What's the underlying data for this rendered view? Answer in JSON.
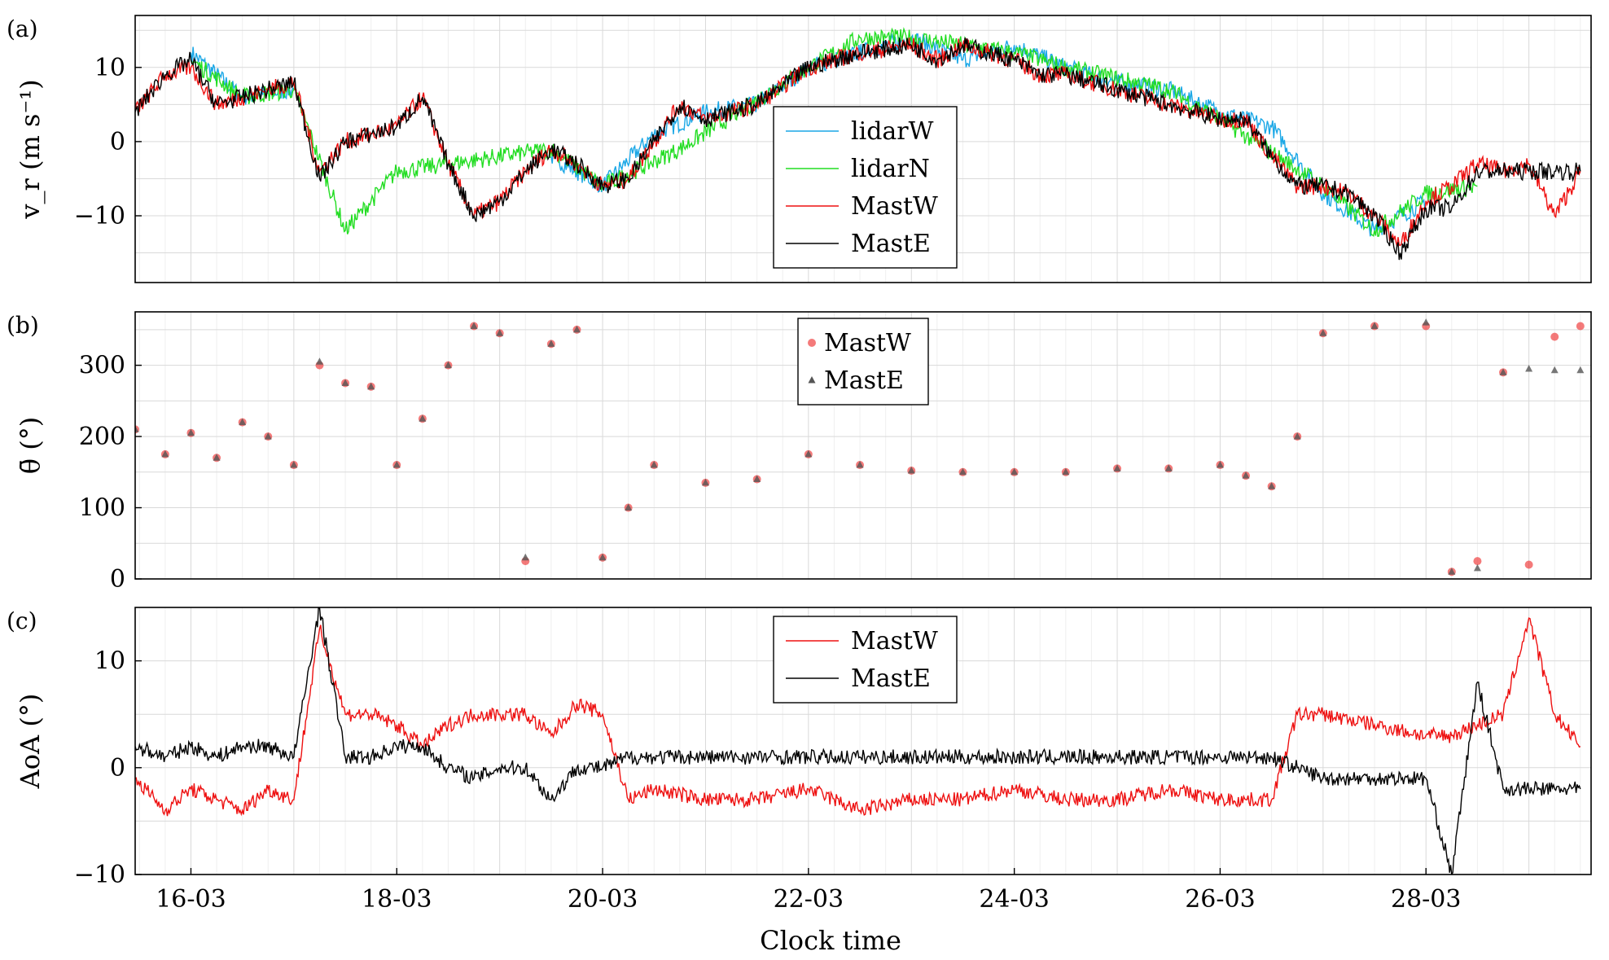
{
  "chart_data": [
    {
      "panel": "(a)",
      "type": "line",
      "ylabel": "v_r (m s⁻¹)",
      "ylim": [
        -19,
        17
      ],
      "yticks": [
        -10,
        0,
        10
      ],
      "yticklabels": [
        "−10",
        "0",
        "10"
      ],
      "xlim": [
        "2023-03-15T11:00",
        "2023-03-29T14:30"
      ],
      "grid": true,
      "legend": "center",
      "series": [
        {
          "name": "lidarW",
          "color": "#1aa7e6",
          "x": [
            "03-15 12:00",
            "03-16 00:00",
            "03-16 12:00",
            "03-17 00:00",
            "03-17 12:00",
            "03-18 00:00",
            "03-18 12:00",
            "03-19 00:00",
            "03-19 12:00",
            "03-20 00:00",
            "03-20 12:00",
            "03-21 00:00",
            "03-21 12:00",
            "03-22 00:00",
            "03-22 12:00",
            "03-23 00:00",
            "03-23 12:00",
            "03-24 00:00",
            "03-24 12:00",
            "03-25 00:00",
            "03-25 12:00",
            "03-26 00:00",
            "03-26 12:00",
            "03-27 00:00",
            "03-27 12:00",
            "03-28 00:00"
          ],
          "values": [
            null,
            12,
            6,
            7,
            null,
            null,
            null,
            null,
            -2,
            -6,
            1,
            4,
            5,
            10,
            12,
            14,
            11,
            13,
            10,
            8,
            7,
            4,
            2,
            -7,
            -12,
            -8
          ]
        },
        {
          "name": "lidarN",
          "color": "#22dd22",
          "x": [
            "03-16 00:00",
            "03-16 12:00",
            "03-17 00:00",
            "03-17 12:00",
            "03-17 18:00",
            "03-18 00:00",
            "03-19 12:00",
            "03-20 00:00",
            "03-20 18:00",
            "03-22 00:00",
            "03-22 12:00",
            "03-23 00:00",
            "03-23 12:00",
            "03-24 00:00",
            "03-24 12:00",
            "03-25 12:00",
            "03-26 00:00",
            "03-27 00:00",
            "03-27 12:00",
            "03-28 00:00",
            "03-28 12:00"
          ],
          "values": [
            11,
            6,
            7,
            -12,
            -8,
            -4,
            -1,
            -6,
            -1,
            10,
            14,
            14,
            13,
            12,
            10,
            7,
            3,
            -6,
            -12,
            -7,
            -6
          ]
        },
        {
          "name": "MastW",
          "color": "#ee1111",
          "x": [
            "03-15 11:00",
            "03-15 18:00",
            "03-16 00:00",
            "03-16 06:00",
            "03-16 12:00",
            "03-16 18:00",
            "03-17 00:00",
            "03-17 06:00",
            "03-17 12:00",
            "03-17 18:00",
            "03-18 00:00",
            "03-18 06:00",
            "03-18 12:00",
            "03-18 18:00",
            "03-19 00:00",
            "03-19 06:00",
            "03-19 12:00",
            "03-19 18:00",
            "03-20 00:00",
            "03-20 06:00",
            "03-20 12:00",
            "03-20 18:00",
            "03-21 00:00",
            "03-21 12:00",
            "03-22 00:00",
            "03-22 12:00",
            "03-23 00:00",
            "03-23 06:00",
            "03-23 12:00",
            "03-23 18:00",
            "03-24 00:00",
            "03-24 06:00",
            "03-24 12:00",
            "03-25 00:00",
            "03-25 12:00",
            "03-26 00:00",
            "03-26 06:00",
            "03-26 12:00",
            "03-26 18:00",
            "03-27 00:00",
            "03-27 06:00",
            "03-27 12:00",
            "03-27 18:00",
            "03-28 00:00",
            "03-28 06:00",
            "03-28 12:00",
            "03-28 18:00",
            "03-29 00:00",
            "03-29 06:00",
            "03-29 12:00"
          ],
          "values": [
            4,
            9,
            10,
            5,
            6,
            7,
            8,
            -4,
            0,
            1,
            2,
            6,
            -3,
            -10,
            -8,
            -4,
            -1,
            -3,
            -6,
            -5,
            0,
            5,
            3,
            5,
            10,
            12,
            13,
            11,
            13,
            12,
            11,
            9,
            9,
            7,
            5,
            3,
            3,
            -2,
            -6,
            -6,
            -7,
            -10,
            -14,
            -8,
            -6,
            -3,
            -4,
            -3,
            -10,
            -4
          ]
        },
        {
          "name": "MastE",
          "color": "#000000",
          "x": [
            "03-15 11:00",
            "03-15 18:00",
            "03-16 00:00",
            "03-16 06:00",
            "03-16 12:00",
            "03-16 18:00",
            "03-17 00:00",
            "03-17 06:00",
            "03-17 12:00",
            "03-17 18:00",
            "03-18 00:00",
            "03-18 06:00",
            "03-18 12:00",
            "03-18 18:00",
            "03-19 00:00",
            "03-19 06:00",
            "03-19 12:00",
            "03-19 18:00",
            "03-20 00:00",
            "03-20 06:00",
            "03-20 12:00",
            "03-20 18:00",
            "03-21 00:00",
            "03-21 12:00",
            "03-22 00:00",
            "03-22 12:00",
            "03-23 00:00",
            "03-23 06:00",
            "03-23 12:00",
            "03-23 18:00",
            "03-24 00:00",
            "03-24 06:00",
            "03-24 12:00",
            "03-25 00:00",
            "03-25 12:00",
            "03-26 00:00",
            "03-26 06:00",
            "03-26 12:00",
            "03-26 18:00",
            "03-27 00:00",
            "03-27 06:00",
            "03-27 12:00",
            "03-27 18:00",
            "03-28 00:00",
            "03-28 06:00",
            "03-28 12:00",
            "03-28 18:00",
            "03-29 00:00",
            "03-29 06:00",
            "03-29 12:00"
          ],
          "values": [
            4,
            9,
            11,
            5,
            6,
            7,
            8,
            -5,
            0,
            1,
            2,
            6,
            -3,
            -10,
            -8,
            -4,
            -1,
            -3,
            -6,
            -5,
            0,
            5,
            3,
            5,
            10,
            12,
            13,
            11,
            13,
            12,
            11,
            9,
            9,
            7,
            5,
            3,
            3,
            -2,
            -6,
            -6,
            -7,
            -10,
            -15,
            -9,
            -9,
            -4,
            -4,
            -4,
            -4,
            -4
          ]
        }
      ]
    },
    {
      "panel": "(b)",
      "type": "scatter",
      "ylabel": "θ̄ (°)",
      "ylim": [
        0,
        375
      ],
      "yticks": [
        0,
        100,
        200,
        300
      ],
      "yticklabels": [
        "0",
        "100",
        "200",
        "300"
      ],
      "xlim": [
        "2023-03-15T11:00",
        "2023-03-29T14:30"
      ],
      "grid": true,
      "legend": "top-center",
      "series": [
        {
          "name": "MastW",
          "marker": "circle",
          "color": "#ee3333",
          "x": [
            "03-15 11:00",
            "03-15 18:00",
            "03-16 00:00",
            "03-16 06:00",
            "03-16 12:00",
            "03-16 18:00",
            "03-17 00:00",
            "03-17 06:00",
            "03-17 12:00",
            "03-17 18:00",
            "03-18 00:00",
            "03-18 06:00",
            "03-18 12:00",
            "03-18 18:00",
            "03-19 00:00",
            "03-19 06:00",
            "03-19 12:00",
            "03-19 18:00",
            "03-20 00:00",
            "03-20 06:00",
            "03-20 12:00",
            "03-21 00:00",
            "03-21 12:00",
            "03-22 00:00",
            "03-22 12:00",
            "03-23 00:00",
            "03-23 12:00",
            "03-24 00:00",
            "03-24 12:00",
            "03-25 00:00",
            "03-25 12:00",
            "03-26 00:00",
            "03-26 06:00",
            "03-26 12:00",
            "03-26 18:00",
            "03-27 00:00",
            "03-27 12:00",
            "03-28 00:00",
            "03-28 06:00",
            "03-28 12:00",
            "03-28 18:00",
            "03-29 00:00",
            "03-29 06:00",
            "03-29 12:00"
          ],
          "values": [
            210,
            175,
            205,
            170,
            220,
            200,
            160,
            300,
            275,
            270,
            160,
            225,
            300,
            355,
            345,
            25,
            330,
            350,
            30,
            100,
            160,
            135,
            140,
            175,
            160,
            152,
            150,
            150,
            150,
            155,
            155,
            160,
            145,
            130,
            200,
            345,
            355,
            355,
            10,
            25,
            290,
            20,
            340,
            355
          ]
        },
        {
          "name": "MastE",
          "marker": "triangle",
          "color": "#555555",
          "x": [
            "03-15 11:00",
            "03-15 18:00",
            "03-16 00:00",
            "03-16 06:00",
            "03-16 12:00",
            "03-16 18:00",
            "03-17 00:00",
            "03-17 06:00",
            "03-17 12:00",
            "03-17 18:00",
            "03-18 00:00",
            "03-18 06:00",
            "03-18 12:00",
            "03-18 18:00",
            "03-19 00:00",
            "03-19 06:00",
            "03-19 12:00",
            "03-19 18:00",
            "03-20 00:00",
            "03-20 06:00",
            "03-20 12:00",
            "03-21 00:00",
            "03-21 12:00",
            "03-22 00:00",
            "03-22 12:00",
            "03-23 00:00",
            "03-23 12:00",
            "03-24 00:00",
            "03-24 12:00",
            "03-25 00:00",
            "03-25 12:00",
            "03-26 00:00",
            "03-26 06:00",
            "03-26 12:00",
            "03-26 18:00",
            "03-27 00:00",
            "03-27 12:00",
            "03-28 00:00",
            "03-28 06:00",
            "03-28 12:00",
            "03-28 18:00",
            "03-29 00:00",
            "03-29 06:00",
            "03-29 12:00"
          ],
          "values": [
            210,
            175,
            205,
            170,
            220,
            200,
            160,
            305,
            275,
            270,
            160,
            225,
            300,
            355,
            345,
            30,
            330,
            350,
            30,
            100,
            160,
            135,
            140,
            175,
            160,
            152,
            150,
            150,
            150,
            155,
            155,
            160,
            145,
            130,
            200,
            345,
            355,
            360,
            10,
            15,
            290,
            295,
            293,
            293
          ]
        }
      ]
    },
    {
      "panel": "(c)",
      "type": "line",
      "ylabel": "AoA (°)",
      "xlabel": "Clock time",
      "ylim": [
        -10,
        15
      ],
      "yticks": [
        -10,
        0,
        10
      ],
      "yticklabels": [
        "−10",
        "0",
        "10"
      ],
      "xticklabels": [
        "16-03",
        "18-03",
        "20-03",
        "22-03",
        "24-03",
        "26-03",
        "28-03"
      ],
      "xticks": [
        "03-16 00:00",
        "03-18 00:00",
        "03-20 00:00",
        "03-22 00:00",
        "03-24 00:00",
        "03-26 00:00",
        "03-28 00:00"
      ],
      "xlim": [
        "2023-03-15T11:00",
        "2023-03-29T14:30"
      ],
      "grid": true,
      "legend": "top-center",
      "series": [
        {
          "name": "MastW",
          "color": "#ee1111",
          "x": [
            "03-15 11:00",
            "03-15 18:00",
            "03-16 00:00",
            "03-16 06:00",
            "03-16 12:00",
            "03-16 18:00",
            "03-17 00:00",
            "03-17 06:00",
            "03-17 12:00",
            "03-17 18:00",
            "03-18 00:00",
            "03-18 06:00",
            "03-18 12:00",
            "03-18 18:00",
            "03-19 00:00",
            "03-19 06:00",
            "03-19 12:00",
            "03-19 18:00",
            "03-20 00:00",
            "03-20 06:00",
            "03-20 12:00",
            "03-21 00:00",
            "03-21 12:00",
            "03-22 00:00",
            "03-22 12:00",
            "03-23 00:00",
            "03-23 12:00",
            "03-24 00:00",
            "03-24 12:00",
            "03-25 00:00",
            "03-25 12:00",
            "03-26 00:00",
            "03-26 06:00",
            "03-26 12:00",
            "03-26 18:00",
            "03-27 00:00",
            "03-27 12:00",
            "03-28 00:00",
            "03-28 06:00",
            "03-28 12:00",
            "03-28 18:00",
            "03-29 00:00",
            "03-29 06:00",
            "03-29 12:00"
          ],
          "values": [
            -1,
            -4,
            -2,
            -3,
            -4,
            -2,
            -3,
            13,
            5,
            5,
            4,
            2,
            4,
            5,
            5,
            5,
            3,
            6,
            5,
            -3,
            -2,
            -3,
            -3,
            -2,
            -4,
            -3,
            -3,
            -2,
            -3,
            -3,
            -2,
            -3,
            -3,
            -3,
            5,
            5,
            4,
            3,
            3,
            4,
            5,
            14,
            5,
            2
          ]
        },
        {
          "name": "MastE",
          "color": "#000000",
          "x": [
            "03-15 11:00",
            "03-15 18:00",
            "03-16 00:00",
            "03-16 06:00",
            "03-16 12:00",
            "03-16 18:00",
            "03-17 00:00",
            "03-17 06:00",
            "03-17 12:00",
            "03-17 18:00",
            "03-18 00:00",
            "03-18 06:00",
            "03-18 12:00",
            "03-18 18:00",
            "03-19 00:00",
            "03-19 06:00",
            "03-19 12:00",
            "03-19 18:00",
            "03-20 00:00",
            "03-20 06:00",
            "03-20 12:00",
            "03-21 00:00",
            "03-21 12:00",
            "03-22 00:00",
            "03-22 12:00",
            "03-23 00:00",
            "03-23 12:00",
            "03-24 00:00",
            "03-24 12:00",
            "03-25 00:00",
            "03-25 12:00",
            "03-26 00:00",
            "03-26 06:00",
            "03-26 12:00",
            "03-26 18:00",
            "03-27 00:00",
            "03-27 12:00",
            "03-28 00:00",
            "03-28 06:00",
            "03-28 12:00",
            "03-28 18:00",
            "03-29 00:00",
            "03-29 06:00",
            "03-29 12:00"
          ],
          "values": [
            2,
            1,
            2,
            1,
            2,
            2,
            1,
            15,
            1,
            1,
            2,
            2,
            0,
            -1,
            0,
            0,
            -3,
            0,
            0,
            1,
            1,
            1,
            1,
            1,
            1,
            1,
            1,
            1,
            1,
            1,
            1,
            1,
            1,
            1,
            0,
            -1,
            -1,
            -1,
            -10,
            8,
            -2,
            -2,
            -2,
            -2
          ]
        }
      ]
    }
  ]
}
